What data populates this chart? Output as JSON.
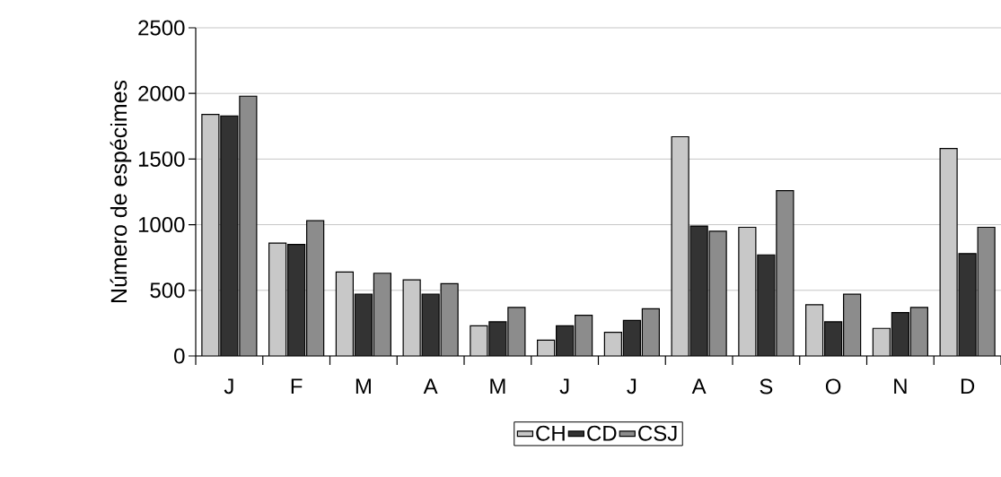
{
  "chart_data": {
    "type": "bar",
    "ylabel": "Número de espécimes",
    "categories": [
      "J",
      "F",
      "M",
      "A",
      "M",
      "J",
      "J",
      "A",
      "S",
      "O",
      "N",
      "D"
    ],
    "series": [
      {
        "name": "CH",
        "color": "#c8c8c8",
        "values": [
          1840,
          860,
          640,
          580,
          230,
          120,
          180,
          1670,
          980,
          390,
          210,
          1580
        ]
      },
      {
        "name": "CD",
        "color": "#333333",
        "values": [
          1830,
          850,
          470,
          470,
          260,
          230,
          270,
          990,
          770,
          260,
          330,
          780
        ]
      },
      {
        "name": "CSJ",
        "color": "#8c8c8c",
        "values": [
          1980,
          1030,
          630,
          550,
          370,
          310,
          360,
          950,
          1260,
          470,
          370,
          980
        ]
      }
    ],
    "ylim": [
      0,
      2500
    ],
    "yticks": [
      0,
      500,
      1000,
      1500,
      2000,
      2500
    ],
    "grid": "y",
    "legend": "bottom"
  }
}
